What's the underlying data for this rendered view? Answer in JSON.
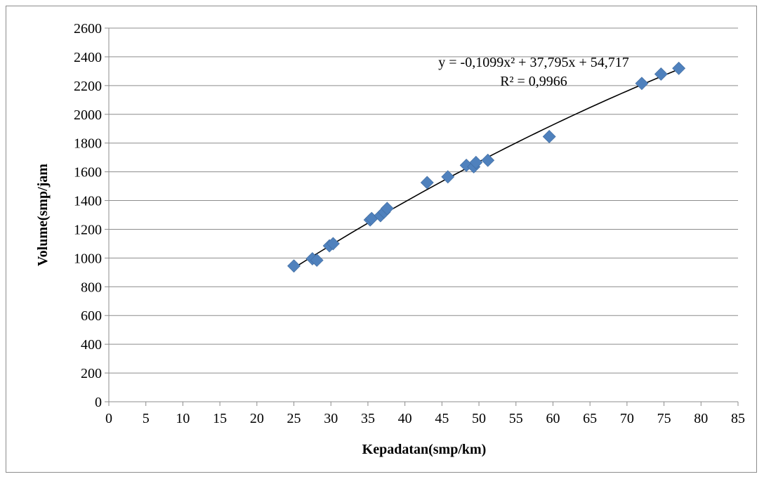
{
  "chart_data": {
    "type": "scatter",
    "title": "",
    "xlabel": "Kepadatan(smp/km)",
    "ylabel": "Volume(smp/jam",
    "xlim": [
      0,
      85
    ],
    "ylim": [
      0,
      2600
    ],
    "x_ticks": [
      0,
      5,
      10,
      15,
      20,
      25,
      30,
      35,
      40,
      45,
      50,
      55,
      60,
      65,
      70,
      75,
      80,
      85
    ],
    "y_ticks": [
      0,
      200,
      400,
      600,
      800,
      1000,
      1200,
      1400,
      1600,
      1800,
      2000,
      2200,
      2400,
      2600
    ],
    "grid": "horizontal",
    "legend": "none",
    "marker_color": "#4f81bd",
    "trendline_color": "#000000",
    "points": [
      {
        "x": 25.0,
        "y": 945
      },
      {
        "x": 27.5,
        "y": 995
      },
      {
        "x": 28.1,
        "y": 985
      },
      {
        "x": 29.8,
        "y": 1085
      },
      {
        "x": 30.3,
        "y": 1100
      },
      {
        "x": 35.3,
        "y": 1265
      },
      {
        "x": 35.5,
        "y": 1275
      },
      {
        "x": 36.7,
        "y": 1295
      },
      {
        "x": 37.2,
        "y": 1320
      },
      {
        "x": 37.6,
        "y": 1345
      },
      {
        "x": 43.0,
        "y": 1525
      },
      {
        "x": 45.8,
        "y": 1565
      },
      {
        "x": 48.3,
        "y": 1645
      },
      {
        "x": 49.3,
        "y": 1635
      },
      {
        "x": 49.6,
        "y": 1665
      },
      {
        "x": 51.2,
        "y": 1680
      },
      {
        "x": 59.5,
        "y": 1845
      },
      {
        "x": 72.0,
        "y": 2215
      },
      {
        "x": 74.6,
        "y": 2280
      },
      {
        "x": 77.0,
        "y": 2320
      }
    ],
    "trendline": {
      "type": "polynomial",
      "coefficients": [
        -0.1099,
        37.795,
        54.717
      ],
      "x_range": [
        25,
        77
      ],
      "equation": "y = -0,1099x² + 37,795x + 54,717",
      "r_squared": "R² = 0,9966"
    }
  }
}
